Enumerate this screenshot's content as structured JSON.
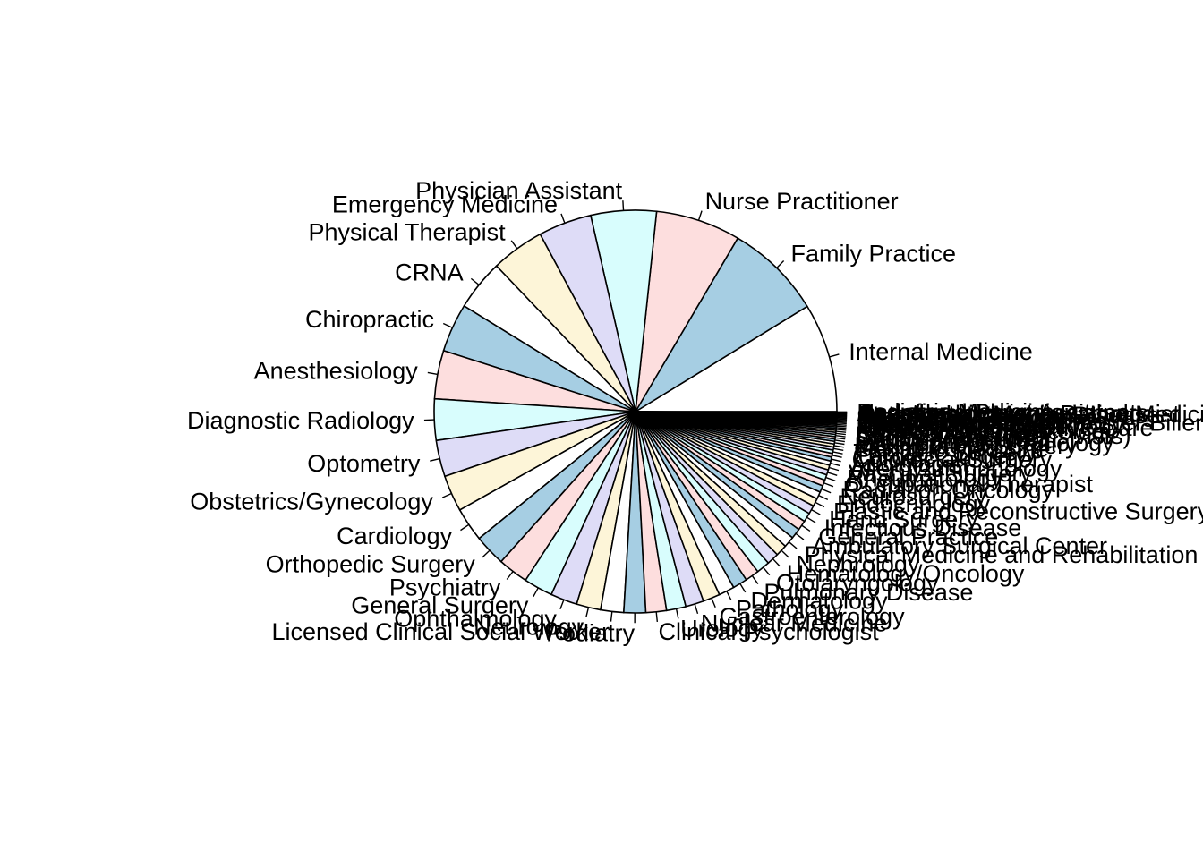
{
  "chart_data": {
    "type": "pie",
    "title": "",
    "legend": "none",
    "palette": [
      "#ffffff",
      "#a6cee3",
      "#fddede",
      "#d8fdfd",
      "#dedcf7",
      "#fdf5d8"
    ],
    "slices": [
      {
        "label": "Internal Medicine",
        "value": 9.0
      },
      {
        "label": "Family Practice",
        "value": 8.0
      },
      {
        "label": "Nurse Practitioner",
        "value": 7.0
      },
      {
        "label": "Physician Assistant",
        "value": 5.4
      },
      {
        "label": "Emergency Medicine",
        "value": 4.4
      },
      {
        "label": "Physical Therapist",
        "value": 4.4
      },
      {
        "label": "CRNA",
        "value": 4.2
      },
      {
        "label": "Chiropractic",
        "value": 4.0
      },
      {
        "label": "Anesthesiology",
        "value": 4.0
      },
      {
        "label": "Diagnostic Radiology",
        "value": 3.4
      },
      {
        "label": "Optometry",
        "value": 3.0
      },
      {
        "label": "Obstetrics/Gynecology",
        "value": 3.0
      },
      {
        "label": "Cardiology",
        "value": 2.8
      },
      {
        "label": "Orthopedic Surgery",
        "value": 2.6
      },
      {
        "label": "Psychiatry",
        "value": 2.5
      },
      {
        "label": "General Surgery",
        "value": 2.4
      },
      {
        "label": "Ophthalmology",
        "value": 2.2
      },
      {
        "label": "Neurology",
        "value": 2.0
      },
      {
        "label": "Licensed Clinical Social Worker",
        "value": 1.9
      },
      {
        "label": "Podiatry",
        "value": 1.8
      },
      {
        "label": "Clinical Psychologist",
        "value": 1.7
      },
      {
        "label": "Urology",
        "value": 1.6
      },
      {
        "label": "Nuclear Medicine",
        "value": 1.5
      },
      {
        "label": "Gastroenterology",
        "value": 1.4
      },
      {
        "label": "Pathology",
        "value": 1.3
      },
      {
        "label": "Dermatology",
        "value": 1.2
      },
      {
        "label": "Pulmonary Disease",
        "value": 1.15
      },
      {
        "label": "Otolaryngology",
        "value": 1.1
      },
      {
        "label": "Hematology/Oncology",
        "value": 1.0
      },
      {
        "label": "Nephrology",
        "value": 0.95
      },
      {
        "label": "Physical Medicine and Rehabilitation",
        "value": 0.9
      },
      {
        "label": "Ambulatory Surgical Center",
        "value": 0.85
      },
      {
        "label": "General Practice",
        "value": 0.8
      },
      {
        "label": "Infectious Disease",
        "value": 0.75
      },
      {
        "label": "Hand Surgery",
        "value": 0.7
      },
      {
        "label": "Plastic and Reconstructive Surgery",
        "value": 0.65
      },
      {
        "label": "Endocrinology",
        "value": 0.6
      },
      {
        "label": "Neurosurgery",
        "value": 0.55
      },
      {
        "label": "Radiation Oncology",
        "value": 0.5
      },
      {
        "label": "Occupational Therapist",
        "value": 0.45
      },
      {
        "label": "Rheumatology",
        "value": 0.42
      },
      {
        "label": "Vascular Surgery",
        "value": 0.4
      },
      {
        "label": "Allergy/Immunology",
        "value": 0.35
      },
      {
        "label": "Audiologist",
        "value": 0.33
      },
      {
        "label": "Colorectal Surgery",
        "value": 0.3
      },
      {
        "label": "Cardiac Surgery",
        "value": 0.28
      },
      {
        "label": "Thoracic Surgery",
        "value": 0.26
      },
      {
        "label": "Geriatric Medicine",
        "value": 0.24
      },
      {
        "label": "Maxillofacial Surgery",
        "value": 0.22
      },
      {
        "label": "Interventional Radiology",
        "value": 0.2
      },
      {
        "label": "Pain Management",
        "value": 0.19
      },
      {
        "label": "Sports Medicine",
        "value": 0.18
      },
      {
        "label": "Critical Care (Intensivists)",
        "value": 0.17
      },
      {
        "label": "Surgical Oncology",
        "value": 0.16
      },
      {
        "label": "Gynecological Oncology",
        "value": 0.15
      },
      {
        "label": "Medical Oncology",
        "value": 0.14
      },
      {
        "label": "Hospice and Palliative Care",
        "value": 0.13
      },
      {
        "label": "Interventional Cardiology",
        "value": 0.12
      },
      {
        "label": "Clinical Laboratory",
        "value": 0.11
      },
      {
        "label": "Mass Immunization Roster Biller",
        "value": 0.1
      },
      {
        "label": "Certified Nurse Midwife",
        "value": 0.09
      },
      {
        "label": "Addiction Medicine",
        "value": 0.09
      },
      {
        "label": "Oral Surgery",
        "value": 0.08
      },
      {
        "label": "Registered Dietician",
        "value": 0.08
      },
      {
        "label": "Preventive Medicine",
        "value": 0.07
      },
      {
        "label": "Sleep Medicine",
        "value": 0.07
      },
      {
        "label": "Peripheral Vascular Disease",
        "value": 0.06
      },
      {
        "label": "Osteopathic Manipulative Medicine",
        "value": 0.06
      },
      {
        "label": "Speech Language Pathologist",
        "value": 0.05
      },
      {
        "label": "Anesthesiologist Assistants",
        "value": 0.05
      },
      {
        "label": "Undefined Physician type",
        "value": 0.04
      },
      {
        "label": "Pediatric Medicine",
        "value": 0.04
      }
    ]
  }
}
